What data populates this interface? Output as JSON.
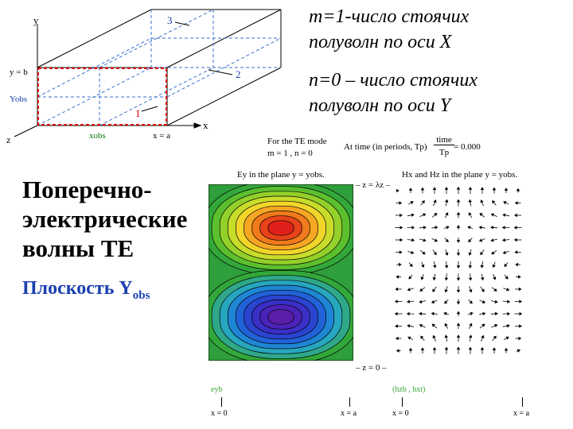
{
  "header": {
    "m_line1": "m=1-число стоячих",
    "m_line2": "полуволн по оси X",
    "n_line1": "n=0 – число стоячих",
    "n_line2": "полуволн по оси Y"
  },
  "left": {
    "title_line1": "Поперечно-",
    "title_line2": "электрические",
    "title_line3": "волны TE",
    "plane_label": "Плоскость Y",
    "plane_sub": "obs"
  },
  "box_diagram": {
    "axis_y": "y",
    "axis_x": "x",
    "axis_z": "z",
    "y_eq_b": "y = b",
    "y_obs": "Yobs",
    "x_obs": "xobs",
    "x_eq_a": "x = a",
    "mark1": "1",
    "mark2": "2",
    "mark3": "3"
  },
  "mode_info": {
    "mode_line1": "For the TE mode",
    "mode_line2": "m = 1 , n = 0",
    "time_label": "At time (in periods, Tp)",
    "time_frac_num": "time",
    "time_frac_den": "Tp",
    "time_value": "= 0.000"
  },
  "plots": {
    "ey_title": "Ey in the plane y = yobs.",
    "hxz_title": "Hx and Hz in the plane y = yobs.",
    "z_top": "– z = λz –",
    "z_bottom": "– z = 0 –",
    "ey_legend": "eyb",
    "h_legend": "(hzb , hxt)",
    "x0_left": "x = 0",
    "xa_left": "x = a",
    "x0_right": "x = 0",
    "xa_right": "x = a"
  },
  "colors": {
    "accent_blue": "#1a3fb0",
    "red_rect": "#e00000",
    "field_green": "#3aa53a"
  }
}
